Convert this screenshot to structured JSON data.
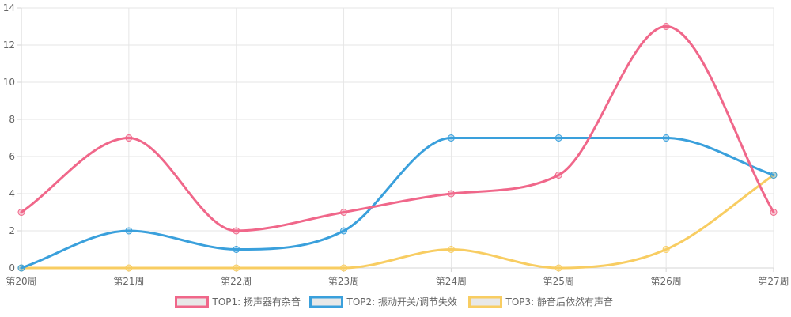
{
  "chart_data": {
    "type": "line",
    "categories": [
      "第20周",
      "第21周",
      "第22周",
      "第23周",
      "第24周",
      "第25周",
      "第26周",
      "第27周"
    ],
    "ylim": [
      0,
      14
    ],
    "yticks": [
      0,
      2,
      4,
      6,
      8,
      10,
      12,
      14
    ],
    "grid": true,
    "smooth": true,
    "legend_position": "bottom",
    "series": [
      {
        "name": "TOP1: 扬声器有杂音",
        "color": "#f0678a",
        "values": [
          3,
          7,
          2,
          3,
          4,
          5,
          13,
          3
        ]
      },
      {
        "name": "TOP2: 振动开关/调节失效",
        "color": "#3aa0dc",
        "values": [
          0,
          2,
          1,
          2,
          7,
          7,
          7,
          5
        ]
      },
      {
        "name": "TOP3: 静音后依然有声音",
        "color": "#f8cd62",
        "values": [
          0,
          0,
          0,
          0,
          1,
          0,
          1,
          5
        ]
      }
    ]
  }
}
